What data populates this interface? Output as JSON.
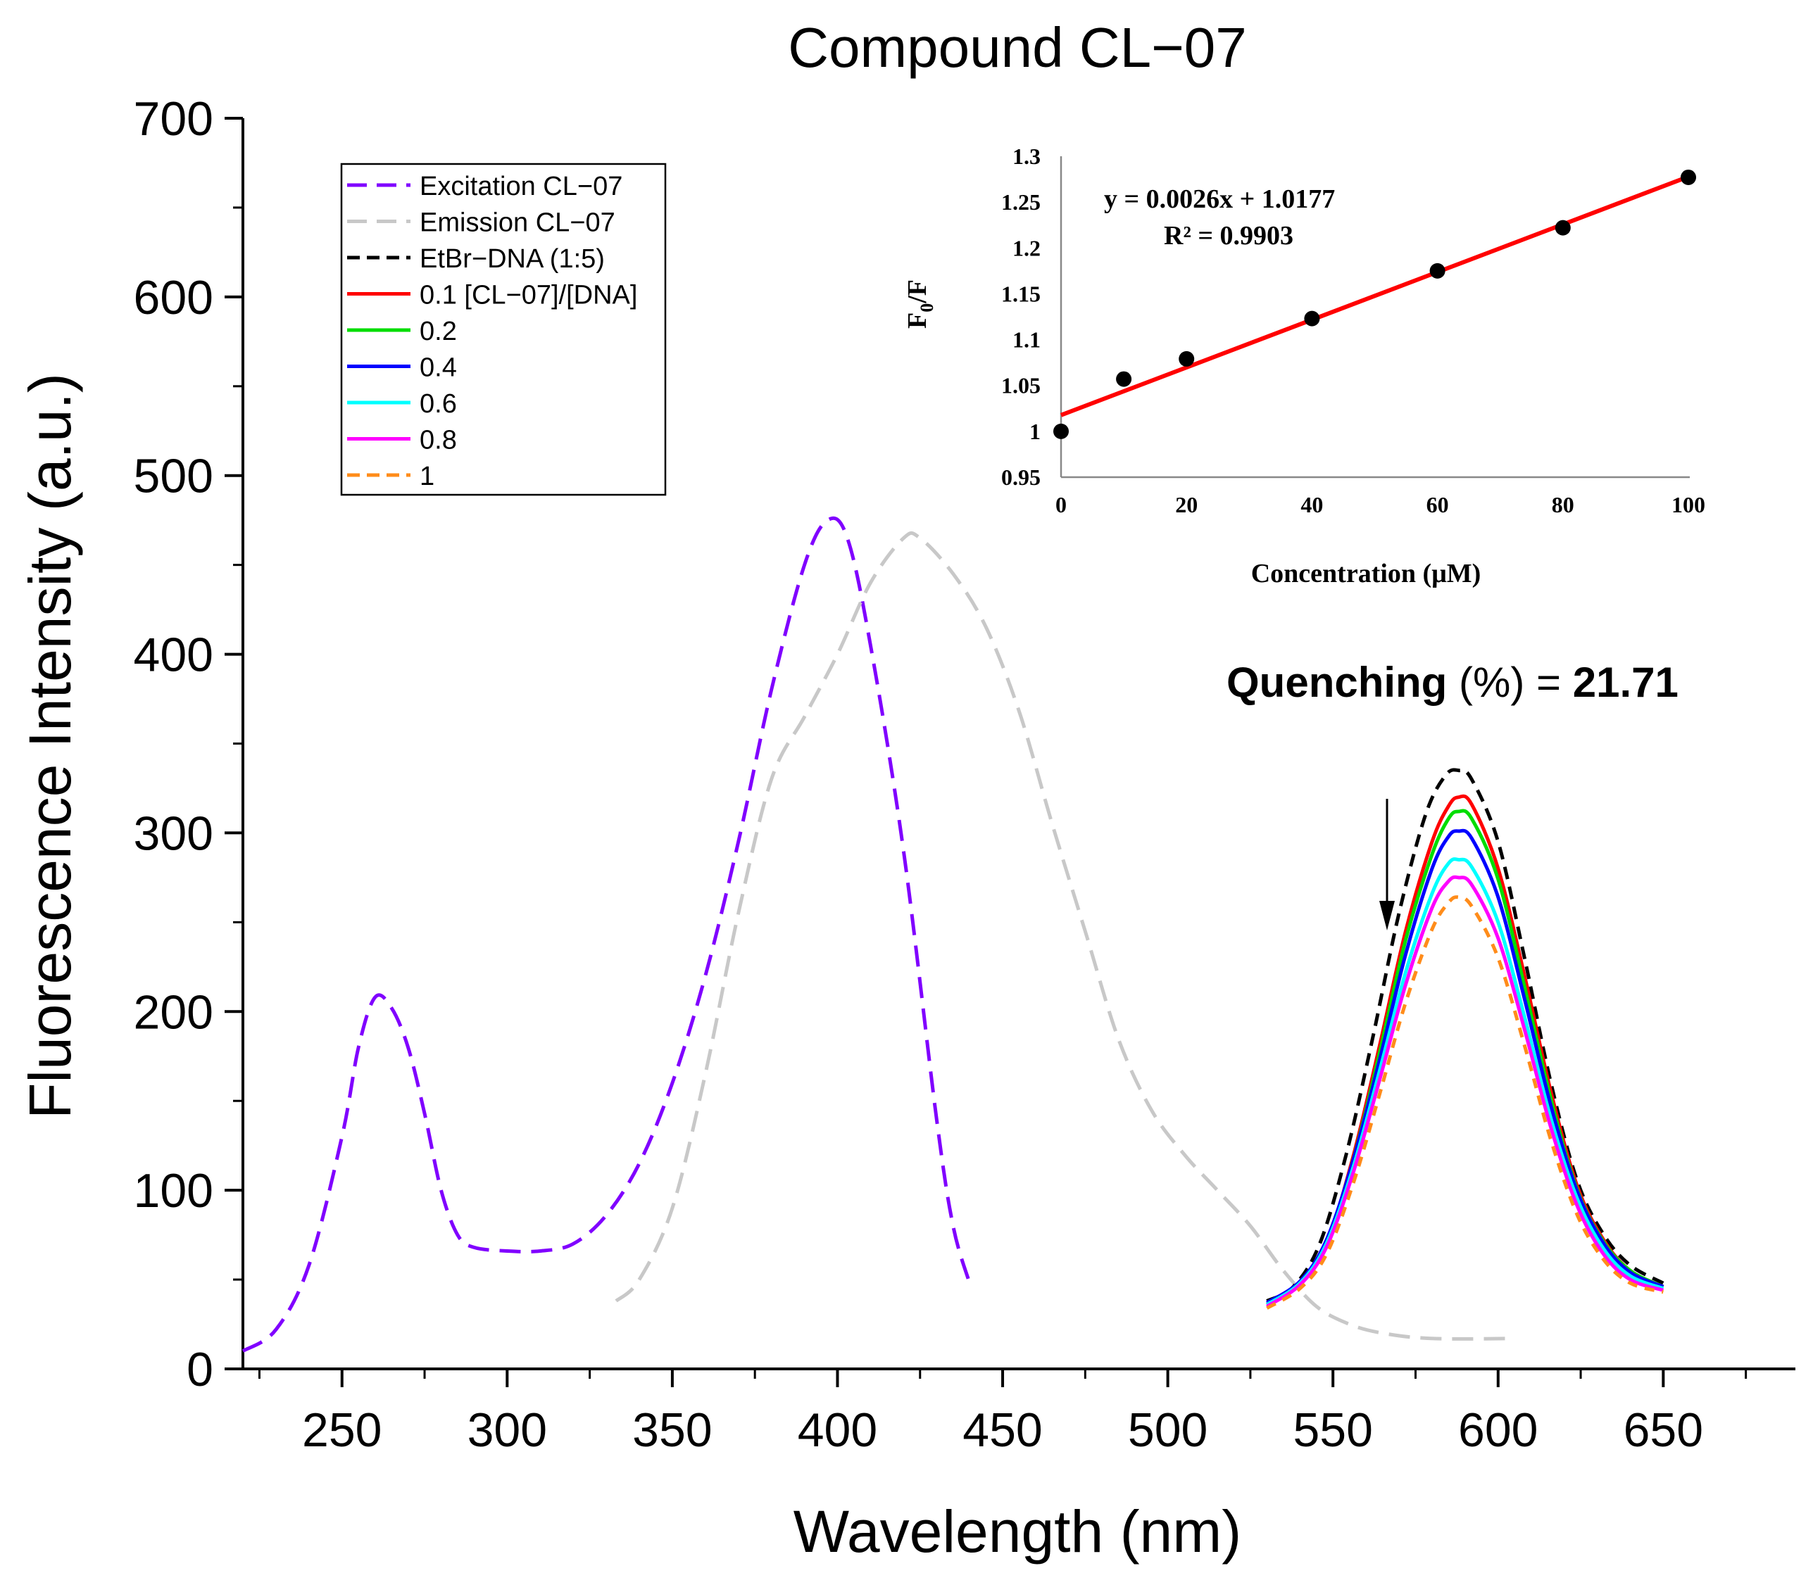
{
  "chart_data": [
    {
      "type": "line",
      "title": "Compound CL−07",
      "xlabel": "Wavelength (nm)",
      "ylabel": "Fluorescence Intensity (a.u.)",
      "xlim": [
        220,
        690
      ],
      "ylim": [
        0,
        700
      ],
      "x_ticks": [
        250,
        300,
        350,
        400,
        450,
        500,
        550,
        600,
        650
      ],
      "y_ticks": [
        0,
        100,
        200,
        300,
        400,
        500,
        600,
        700
      ],
      "legend_position": "top-left",
      "annotation": {
        "bold_1": "Quenching",
        "normal": " (%) = ",
        "bold_2": "21.71"
      },
      "series": [
        {
          "name": "Excitation CL−07",
          "color": "#8000ff",
          "dash": "long",
          "points": [
            [
              220,
              10
            ],
            [
              230,
              22
            ],
            [
              240,
              58
            ],
            [
              250,
              130
            ],
            [
              255,
              180
            ],
            [
              260,
              208
            ],
            [
              265,
              202
            ],
            [
              270,
              180
            ],
            [
              275,
              143
            ],
            [
              280,
              100
            ],
            [
              285,
              75
            ],
            [
              290,
              68
            ],
            [
              300,
              66
            ],
            [
              310,
              66
            ],
            [
              320,
              70
            ],
            [
              330,
              86
            ],
            [
              340,
              115
            ],
            [
              350,
              160
            ],
            [
              360,
              220
            ],
            [
              370,
              295
            ],
            [
              380,
              380
            ],
            [
              390,
              450
            ],
            [
              397,
              475
            ],
            [
              403,
              465
            ],
            [
              410,
              405
            ],
            [
              420,
              290
            ],
            [
              430,
              140
            ],
            [
              435,
              80
            ],
            [
              440,
              48
            ]
          ]
        },
        {
          "name": "Emission CL−07",
          "color": "#c8c8c8",
          "dash": "long",
          "points": [
            [
              333,
              38
            ],
            [
              340,
              50
            ],
            [
              350,
              90
            ],
            [
              360,
              165
            ],
            [
              370,
              255
            ],
            [
              380,
              330
            ],
            [
              390,
              365
            ],
            [
              400,
              400
            ],
            [
              410,
              440
            ],
            [
              420,
              465
            ],
            [
              425,
              465
            ],
            [
              435,
              445
            ],
            [
              445,
              415
            ],
            [
              455,
              368
            ],
            [
              465,
              305
            ],
            [
              475,
              245
            ],
            [
              485,
              185
            ],
            [
              495,
              145
            ],
            [
              505,
              120
            ],
            [
              515,
              100
            ],
            [
              525,
              80
            ],
            [
              535,
              55
            ],
            [
              545,
              35
            ],
            [
              555,
              25
            ],
            [
              565,
              20
            ],
            [
              580,
              17
            ],
            [
              605,
              17
            ]
          ]
        },
        {
          "name": "EtBr−DNA (1:5)",
          "color": "#000000",
          "dash": "medium",
          "points": [
            [
              530,
              38
            ],
            [
              538,
              46
            ],
            [
              546,
              70
            ],
            [
              554,
              120
            ],
            [
              562,
              185
            ],
            [
              570,
              255
            ],
            [
              578,
              310
            ],
            [
              584,
              332
            ],
            [
              588,
              335
            ],
            [
              592,
              330
            ],
            [
              600,
              295
            ],
            [
              608,
              230
            ],
            [
              616,
              160
            ],
            [
              624,
              105
            ],
            [
              632,
              75
            ],
            [
              640,
              58
            ],
            [
              650,
              48
            ]
          ]
        },
        {
          "name": "0.1 [CL−07]/[DNA]",
          "color": "#ff0000",
          "dash": "solid",
          "points": [
            [
              530,
              36
            ],
            [
              540,
              48
            ],
            [
              548,
              70
            ],
            [
              556,
              118
            ],
            [
              564,
              180
            ],
            [
              572,
              245
            ],
            [
              580,
              295
            ],
            [
              585,
              315
            ],
            [
              588,
              320
            ],
            [
              592,
              316
            ],
            [
              600,
              280
            ],
            [
              608,
              220
            ],
            [
              616,
              155
            ],
            [
              624,
              102
            ],
            [
              632,
              72
            ],
            [
              640,
              55
            ],
            [
              650,
              46
            ]
          ]
        },
        {
          "name": "0.2",
          "color": "#00dd00",
          "dash": "solid",
          "points": [
            [
              530,
              36
            ],
            [
              540,
              48
            ],
            [
              548,
              70
            ],
            [
              556,
              116
            ],
            [
              564,
              176
            ],
            [
              572,
              240
            ],
            [
              580,
              288
            ],
            [
              585,
              308
            ],
            [
              588,
              312
            ],
            [
              592,
              308
            ],
            [
              600,
              274
            ],
            [
              608,
              214
            ],
            [
              616,
              151
            ],
            [
              624,
              100
            ],
            [
              632,
              71
            ],
            [
              640,
              55
            ],
            [
              650,
              46
            ]
          ]
        },
        {
          "name": "0.4",
          "color": "#0000ff",
          "dash": "solid",
          "points": [
            [
              530,
              37
            ],
            [
              540,
              49
            ],
            [
              548,
              72
            ],
            [
              556,
              116
            ],
            [
              564,
              172
            ],
            [
              572,
              232
            ],
            [
              580,
              280
            ],
            [
              585,
              298
            ],
            [
              588,
              301
            ],
            [
              592,
              297
            ],
            [
              600,
              264
            ],
            [
              608,
              207
            ],
            [
              616,
              147
            ],
            [
              624,
              99
            ],
            [
              632,
              70
            ],
            [
              640,
              54
            ],
            [
              650,
              46
            ]
          ]
        },
        {
          "name": "0.6",
          "color": "#00ffff",
          "dash": "solid",
          "points": [
            [
              530,
              36
            ],
            [
              540,
              48
            ],
            [
              548,
              70
            ],
            [
              556,
              112
            ],
            [
              564,
              166
            ],
            [
              572,
              222
            ],
            [
              580,
              266
            ],
            [
              585,
              283
            ],
            [
              588,
              285
            ],
            [
              592,
              281
            ],
            [
              600,
              250
            ],
            [
              608,
              197
            ],
            [
              616,
              140
            ],
            [
              624,
              95
            ],
            [
              632,
              67
            ],
            [
              640,
              52
            ],
            [
              650,
              45
            ]
          ]
        },
        {
          "name": "0.8",
          "color": "#ff00ff",
          "dash": "solid",
          "points": [
            [
              530,
              35
            ],
            [
              540,
              47
            ],
            [
              548,
              68
            ],
            [
              556,
              109
            ],
            [
              564,
              161
            ],
            [
              572,
              215
            ],
            [
              580,
              258
            ],
            [
              585,
              273
            ],
            [
              588,
              275
            ],
            [
              592,
              271
            ],
            [
              600,
              241
            ],
            [
              608,
              190
            ],
            [
              616,
              135
            ],
            [
              624,
              91
            ],
            [
              632,
              64
            ],
            [
              640,
              50
            ],
            [
              650,
              44
            ]
          ]
        },
        {
          "name": "1",
          "color": "#ff8c1a",
          "dash": "short",
          "points": [
            [
              530,
              34
            ],
            [
              540,
              45
            ],
            [
              548,
              64
            ],
            [
              556,
              103
            ],
            [
              564,
              153
            ],
            [
              572,
              205
            ],
            [
              580,
              246
            ],
            [
              585,
              261
            ],
            [
              588,
              264
            ],
            [
              592,
              259
            ],
            [
              600,
              230
            ],
            [
              608,
              181
            ],
            [
              616,
              128
            ],
            [
              624,
              86
            ],
            [
              632,
              61
            ],
            [
              640,
              48
            ],
            [
              650,
              43
            ]
          ]
        }
      ]
    },
    {
      "type": "scatter",
      "xlabel": "Concentration (μM)",
      "ylabel": "F0/F",
      "xlim": [
        0,
        100
      ],
      "ylim": [
        0.95,
        1.3
      ],
      "x_ticks": [
        0,
        20,
        40,
        60,
        80,
        100
      ],
      "y_ticks": [
        "0.95",
        "1",
        "1.05",
        "1.1",
        "1.15",
        "1.2",
        "1.25",
        "1.3"
      ],
      "equation": "y = 0.0026x + 1.0177",
      "r_squared": "R² = 0.9903",
      "points": [
        [
          0,
          1.0
        ],
        [
          10,
          1.057
        ],
        [
          20,
          1.079
        ],
        [
          40,
          1.123
        ],
        [
          60,
          1.175
        ],
        [
          80,
          1.222
        ],
        [
          100,
          1.277
        ]
      ],
      "fit": {
        "slope": 0.0026,
        "intercept": 1.0177,
        "color": "#ff0000"
      },
      "marker_color": "#000000"
    }
  ]
}
